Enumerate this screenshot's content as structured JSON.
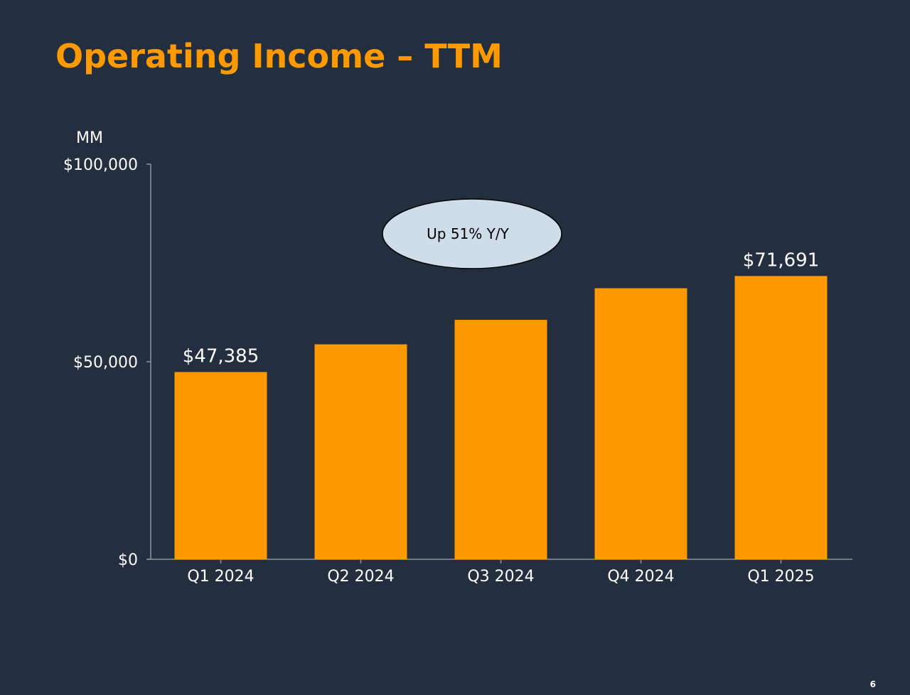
{
  "slide": {
    "title": "Operating Income – TTM",
    "page_number": "6"
  },
  "colors": {
    "background": "#232f3e",
    "bar": "#ff9900",
    "title": "#ff9900",
    "callout_fill": "#cfdcea",
    "axis": "#8c95a0",
    "text": "#ffffff"
  },
  "chart_data": {
    "type": "bar",
    "title": "",
    "xlabel": "",
    "ylabel": "MM",
    "ylim": [
      0,
      100000
    ],
    "y_ticks": [
      {
        "value": 0,
        "label": "$0"
      },
      {
        "value": 50000,
        "label": "$50,000"
      },
      {
        "value": 100000,
        "label": "$100,000"
      }
    ],
    "categories": [
      "Q1 2024",
      "Q2 2024",
      "Q3 2024",
      "Q4 2024",
      "Q1 2025"
    ],
    "values": [
      47385,
      54400,
      60600,
      68600,
      71691
    ],
    "data_labels": [
      "$47,385",
      "",
      "",
      "",
      "$71,691"
    ],
    "grid": false,
    "annotation": "Up 51% Y/Y"
  }
}
